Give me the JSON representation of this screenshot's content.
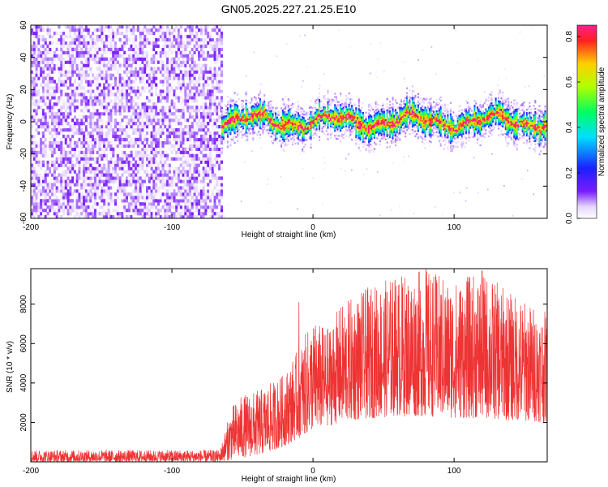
{
  "figure_title": "GN05.2025.227.21.25.E10",
  "chart_data": [
    {
      "type": "heatmap",
      "title": "",
      "xlabel": "Height of straight line (km)",
      "ylabel": "Frequency (Hz)",
      "xlim": [
        -200,
        166
      ],
      "ylim": [
        -60,
        60
      ],
      "xticks": [
        -200,
        -100,
        0,
        100
      ],
      "yticks": [
        -60,
        -40,
        -20,
        0,
        20,
        40,
        60
      ],
      "colorbar": {
        "label": "Normalized spectral amplitude",
        "range": [
          0,
          0.85
        ],
        "ticks": [
          0.0,
          0.2,
          0.4,
          0.6,
          0.8
        ],
        "colormap": "rainbow (white-purple-blue-cyan-green-yellow-red-magenta)"
      },
      "regions": [
        {
          "x_range": [
            -200,
            -65
          ],
          "frequency_range": [
            -60,
            60
          ],
          "amplitude": [
            0.0,
            0.12
          ],
          "description": "broadband noise"
        },
        {
          "x_range": [
            -65,
            166
          ],
          "frequency_center": 0,
          "half_width_hz": [
            3,
            10
          ],
          "amplitude": [
            0.3,
            0.85
          ],
          "description": "narrow signal band near 0 Hz"
        }
      ],
      "grid": false
    },
    {
      "type": "line",
      "title": "",
      "xlabel": "Height of straight line (km)",
      "ylabel": "SNR (10 * v/v)",
      "xlim": [
        -200,
        166
      ],
      "ylim": [
        0,
        9800
      ],
      "xticks": [
        -200,
        -100,
        0,
        100
      ],
      "yticks": [
        2000,
        4000,
        6000,
        8000
      ],
      "color": "#ee3333",
      "series": [
        {
          "name": "",
          "envelope_x": [
            -200,
            -66,
            -58,
            -50,
            -40,
            -30,
            -20,
            -10,
            0,
            10,
            20,
            40,
            60,
            80,
            100,
            120,
            140,
            166
          ],
          "envelope_min": [
            0,
            0,
            100,
            200,
            300,
            500,
            800,
            1200,
            1600,
            1800,
            2000,
            2200,
            2300,
            2300,
            2200,
            2200,
            2100,
            2000
          ],
          "envelope_max": [
            600,
            600,
            2800,
            3400,
            3600,
            4000,
            4500,
            5800,
            7200,
            6800,
            8000,
            8900,
            9500,
            9800,
            9200,
            9700,
            8600,
            7600
          ],
          "spikes": [
            {
              "x": -10,
              "y": 8100
            },
            {
              "x": 58,
              "y": 9100
            },
            {
              "x": 80,
              "y": 9800
            },
            {
              "x": 120,
              "y": 9700
            }
          ]
        }
      ],
      "grid": false
    }
  ]
}
